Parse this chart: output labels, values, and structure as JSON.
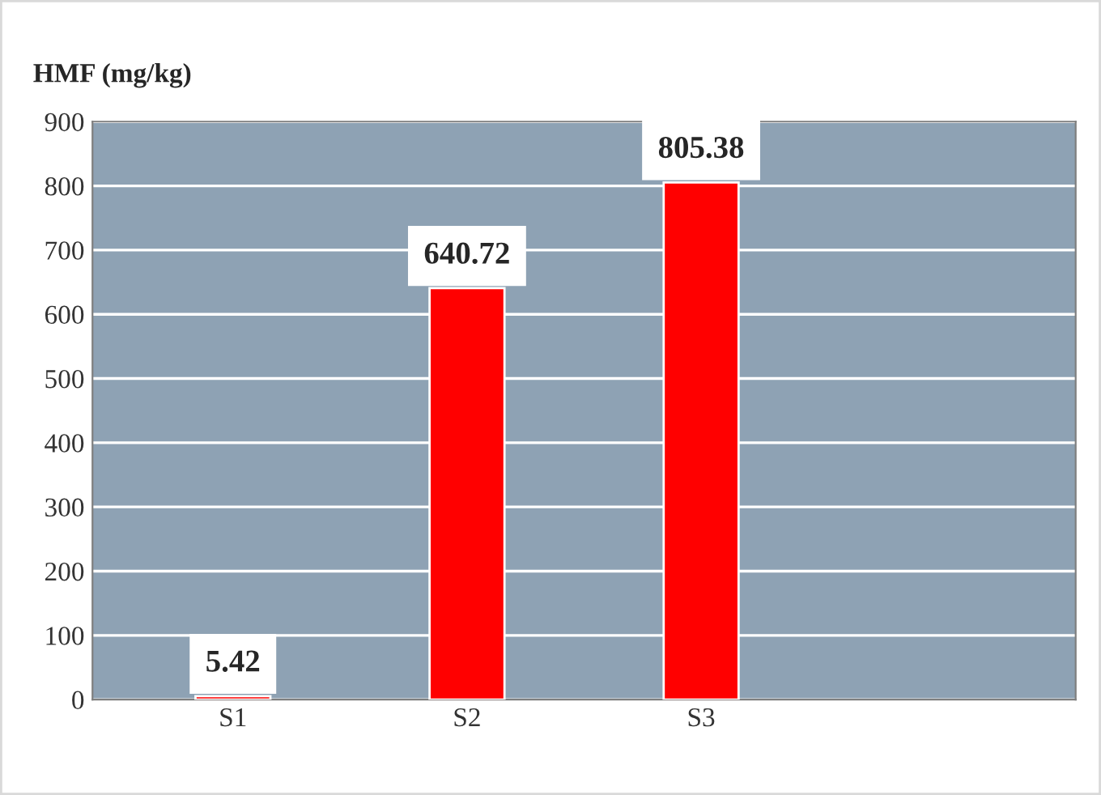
{
  "chart_data": {
    "type": "bar",
    "ylabel": "HMF (mg/kg)",
    "categories": [
      "S1",
      "S2",
      "S3"
    ],
    "values": [
      5.42,
      640.72,
      805.38
    ],
    "color": "#ff0000",
    "ylim": [
      0,
      900
    ],
    "yticks": [
      0,
      100,
      200,
      300,
      400,
      500,
      600,
      700,
      800,
      900
    ],
    "grid": "y",
    "data_labels": true
  }
}
